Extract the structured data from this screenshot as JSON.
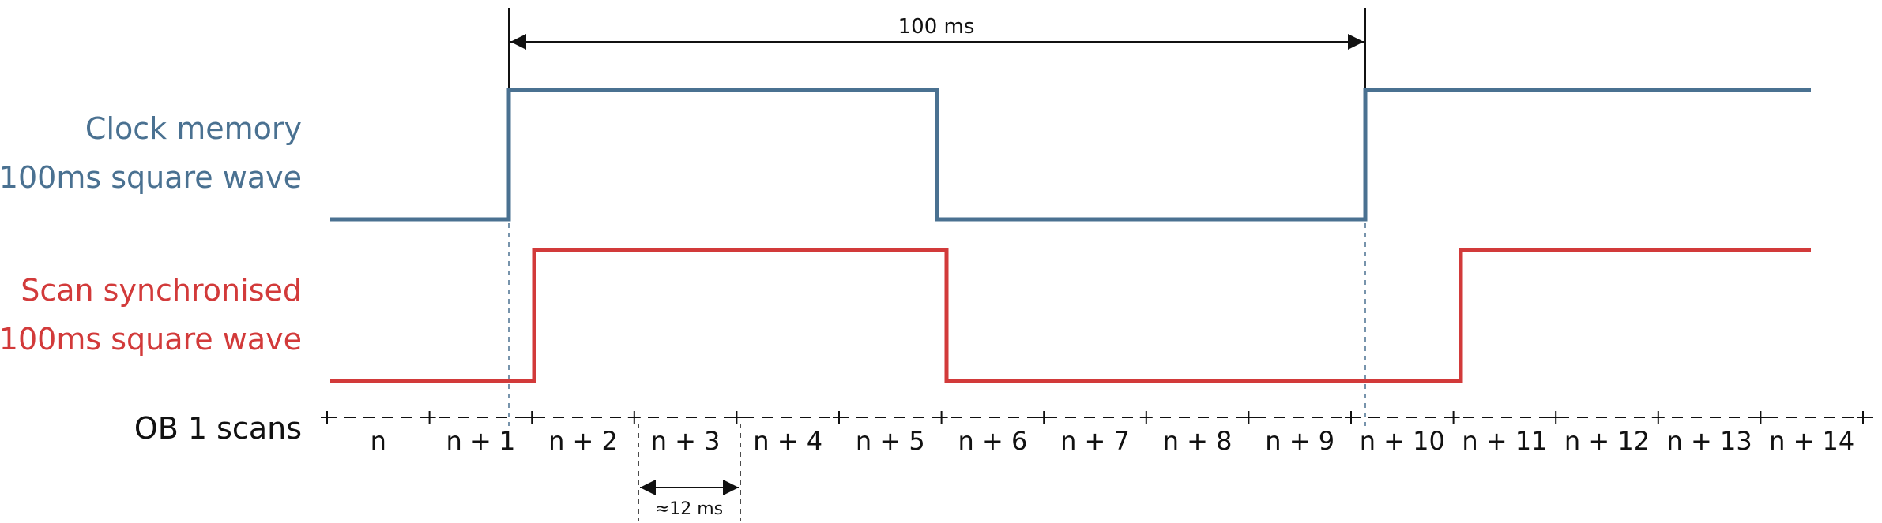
{
  "labels": {
    "clock_line1": "Clock memory",
    "clock_line2": "100ms square wave",
    "scan_line1": "Scan synchronised",
    "scan_line2": "100ms square wave",
    "ob1": "OB 1 scans"
  },
  "dimensions": {
    "period": "100 ms",
    "scan_time": "≈12 ms"
  },
  "scans": [
    "n",
    "n + 1",
    "n + 2",
    "n + 3",
    "n + 4",
    "n + 5",
    "n + 6",
    "n + 7",
    "n + 8",
    "n + 9",
    "n + 10",
    "n + 11",
    "n + 12",
    "n + 13",
    "n + 14"
  ],
  "colors": {
    "clock": "#4a7191",
    "scan_sync": "#d23a3a",
    "text": "#111111"
  }
}
